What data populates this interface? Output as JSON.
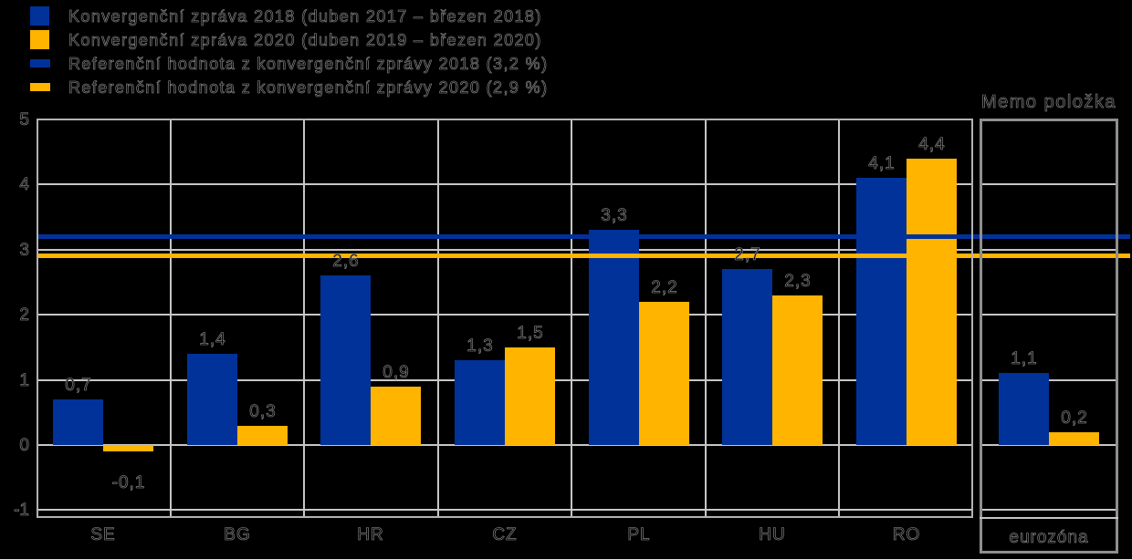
{
  "legend": {
    "items": [
      {
        "label": "Konvergenční zpráva 2018 (duben 2017 – březen 2018)",
        "swatch": "square",
        "color": "#003299"
      },
      {
        "label": "Konvergenční zpráva 2020 (duben 2019 – březen 2020)",
        "swatch": "square",
        "color": "#FFB400"
      },
      {
        "label": "Referenční hodnota z konvergenční zprávy 2018 (3,2 %)",
        "swatch": "line",
        "color": "#003299"
      },
      {
        "label": "Referenční hodnota z konvergenční zprávy 2020 (2,9 %)",
        "swatch": "line",
        "color": "#FFB400"
      }
    ]
  },
  "memo": {
    "title": "Memo položka"
  },
  "colors": {
    "series_2018": "#003299",
    "series_2020": "#FFB400",
    "gridline": "#c6c6c6",
    "frame": "#b2b2b2",
    "memo_frame": "#8f8f8f",
    "background": "#000000"
  },
  "chart_data": {
    "type": "bar",
    "title": "",
    "xlabel": "",
    "ylabel": "",
    "unit": "%",
    "grid": true,
    "legend_position": "top-left",
    "ylim": [
      -1.13,
      5.02
    ],
    "y_ticks": [
      5,
      4,
      3,
      2,
      1,
      0,
      -1
    ],
    "categories": [
      "SE",
      "BG",
      "HR",
      "CZ",
      "PL",
      "HU",
      "RO",
      "eurozóna"
    ],
    "memo_section": {
      "title": "Memo položka",
      "category": "eurozóna"
    },
    "series": [
      {
        "name": "Konvergenční zpráva 2018 (duben 2017 – březen 2018)",
        "color": "#003299",
        "values": [
          0.7,
          1.4,
          2.6,
          1.3,
          3.3,
          2.7,
          4.1,
          1.1
        ],
        "value_labels": [
          "0,7",
          "1,4",
          "2,6",
          "1,3",
          "3,3",
          "2,7",
          "4,1",
          "1,1"
        ]
      },
      {
        "name": "Konvergenční zpráva 2020 (duben 2019 – březen 2020)",
        "color": "#FFB400",
        "values": [
          -0.1,
          0.3,
          0.9,
          1.5,
          2.2,
          2.3,
          4.4,
          0.2
        ],
        "value_labels": [
          "-0,1",
          "0,3",
          "0,9",
          "1,5",
          "2,2",
          "2,3",
          "4,4",
          "0,2"
        ]
      }
    ],
    "reference_lines": [
      {
        "name": "Referenční hodnota z konvergenční zprávy 2018",
        "value": 3.2,
        "value_label": "3,2 %",
        "color": "#003299"
      },
      {
        "name": "Referenční hodnota z konvergenční zprávy 2020",
        "value": 2.9,
        "value_label": "2,9 %",
        "color": "#FFB400"
      }
    ]
  }
}
